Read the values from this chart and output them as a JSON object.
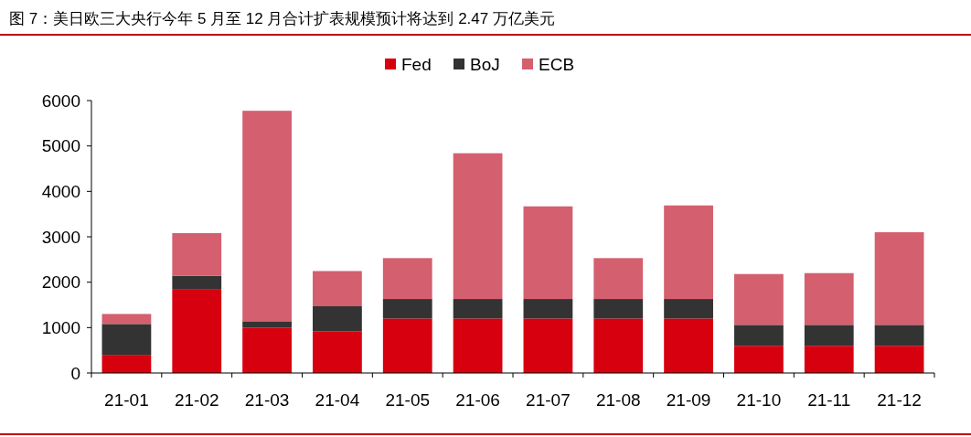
{
  "chart_data": {
    "type": "bar",
    "title": "图 7：美日欧三大央行今年 5 月至 12 月合计扩表规模预计将达到 2.47 万亿美元",
    "categories": [
      "21-01",
      "21-02",
      "21-03",
      "21-04",
      "21-05",
      "21-06",
      "21-07",
      "21-08",
      "21-09",
      "21-10",
      "21-11",
      "21-12"
    ],
    "series": [
      {
        "name": "Fed",
        "color": "#d7000f",
        "values": [
          400,
          1850,
          1000,
          920,
          1200,
          1200,
          1200,
          1200,
          1200,
          600,
          600,
          600
        ]
      },
      {
        "name": "BoJ",
        "color": "#333333",
        "values": [
          680,
          290,
          140,
          550,
          430,
          430,
          430,
          430,
          430,
          460,
          460,
          460
        ]
      },
      {
        "name": "ECB",
        "color": "#d45f6e",
        "values": [
          220,
          940,
          4635,
          775,
          900,
          3210,
          2040,
          900,
          2060,
          1120,
          1140,
          2040
        ]
      }
    ],
    "stacked": true,
    "ylim": [
      0,
      6000
    ],
    "yticks": [
      0,
      1000,
      2000,
      3000,
      4000,
      5000,
      6000
    ],
    "grid": false,
    "legend": "top"
  }
}
